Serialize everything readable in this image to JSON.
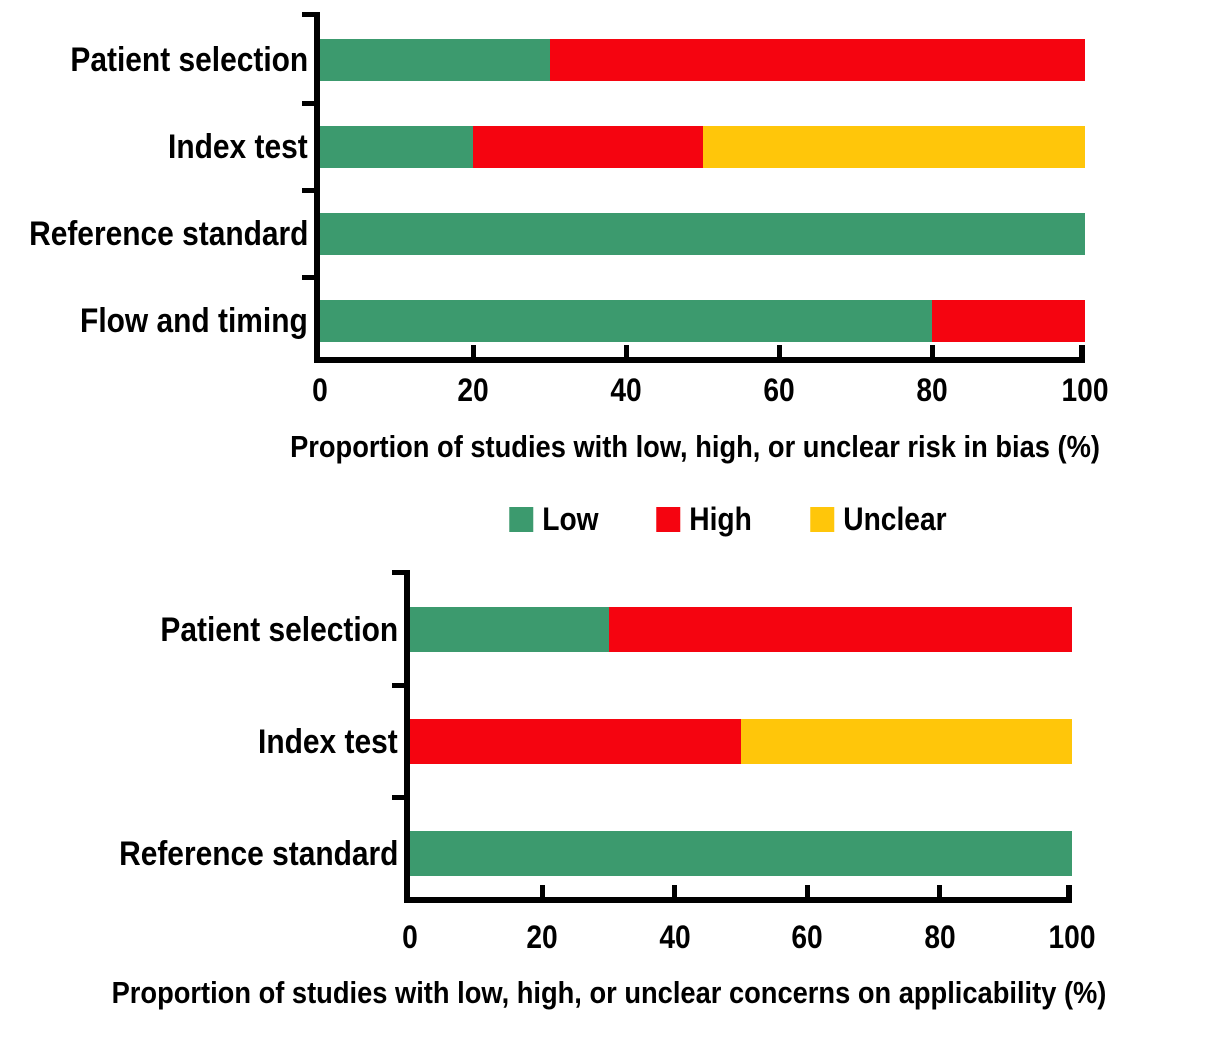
{
  "figure": {
    "background": "#ffffff",
    "axis_color": "#000000",
    "text_color": "#000000"
  },
  "legend": {
    "position": "between-charts",
    "entries": [
      {
        "label": "Low",
        "color": "#3C9A6E"
      },
      {
        "label": "High",
        "color": "#F50410"
      },
      {
        "label": "Unclear",
        "color": "#FFC60A"
      }
    ]
  },
  "chart_data": [
    {
      "type": "bar",
      "orientation": "horizontal",
      "stacked": true,
      "title": "Proportion of studies with low, high, or unclear risk in bias (%)",
      "categories": [
        "Patient selection",
        "Index test",
        "Reference standard",
        "Flow and timing"
      ],
      "series": [
        {
          "name": "Low",
          "color": "#3C9A6E",
          "values": [
            30,
            20,
            100,
            80
          ]
        },
        {
          "name": "High",
          "color": "#F50410",
          "values": [
            70,
            30,
            0,
            20
          ]
        },
        {
          "name": "Unclear",
          "color": "#FFC60A",
          "values": [
            0,
            50,
            0,
            0
          ]
        }
      ],
      "x_ticks": [
        0,
        20,
        40,
        60,
        80,
        100
      ],
      "xlim": [
        0,
        100
      ],
      "grid": false,
      "legend_position": "below"
    },
    {
      "type": "bar",
      "orientation": "horizontal",
      "stacked": true,
      "title": "Proportion of studies with low, high, or unclear concerns on applicability (%)",
      "categories": [
        "Patient selection",
        "Index test",
        "Reference standard"
      ],
      "series": [
        {
          "name": "Low",
          "color": "#3C9A6E",
          "values": [
            30,
            0,
            100
          ]
        },
        {
          "name": "High",
          "color": "#F50410",
          "values": [
            70,
            50,
            0
          ]
        },
        {
          "name": "Unclear",
          "color": "#FFC60A",
          "values": [
            0,
            50,
            0
          ]
        }
      ],
      "x_ticks": [
        0,
        20,
        40,
        60,
        80,
        100
      ],
      "xlim": [
        0,
        100
      ],
      "grid": false,
      "legend_position": "none"
    }
  ]
}
